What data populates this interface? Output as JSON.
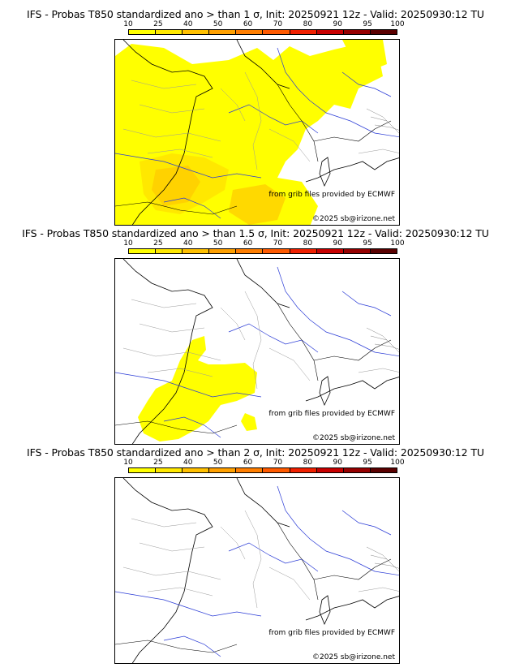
{
  "colorbar": {
    "ticks": [
      "10",
      "25",
      "40",
      "50",
      "60",
      "70",
      "80",
      "90",
      "95",
      "100"
    ],
    "colors": [
      "#ffff00",
      "#ffe800",
      "#ffc000",
      "#ffa000",
      "#ff7e00",
      "#ff5a00",
      "#f02000",
      "#c80000",
      "#960000",
      "#5a0000"
    ]
  },
  "panels": [
    {
      "title": "IFS - Probas T850  standardized ano > than 1 σ, Init: 20250921 12z - Valid: 20250930:12 TU",
      "source_text": "from grib files provided by ECMWF",
      "copyright_text": "©2025 sb@irizone.net",
      "prob_fill": "#ffff00",
      "prob_fill_2": "#ffe800",
      "prob_fill_3": "#ffc000"
    },
    {
      "title": "IFS - Probas T850  standardized ano > than 1.5 σ, Init: 20250921 12z - Valid: 20250930:12 TU",
      "source_text": "from grib files provided by ECMWF",
      "copyright_text": "©2025 sb@irizone.net",
      "prob_fill": "#ffff00"
    },
    {
      "title": "IFS - Probas T850  standardized ano > than 2 σ, Init: 20250921 12z - Valid: 20250930:12 TU",
      "source_text": "from grib files provided by ECMWF",
      "copyright_text": "©2025 sb@irizone.net"
    }
  ]
}
